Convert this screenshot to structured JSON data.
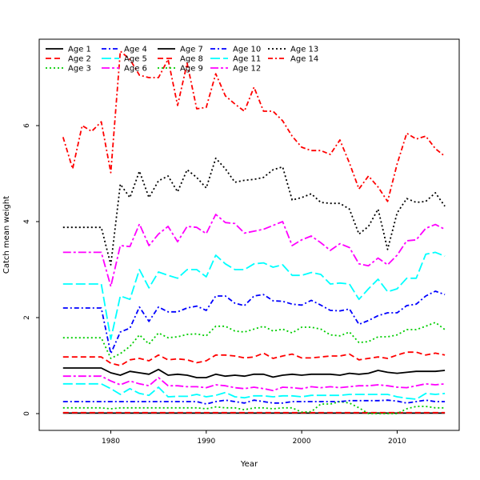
{
  "chart_data": {
    "type": "line",
    "title": "",
    "xlabel": "Year",
    "ylabel": "Catch mean weight",
    "xlim": [
      1972.5,
      2016.5
    ],
    "ylim": [
      -0.35,
      7.8
    ],
    "xticks": [
      1980,
      1990,
      2000,
      2010
    ],
    "yticks": [
      0,
      2,
      4,
      6
    ],
    "grid": false,
    "legend_position": "top-left",
    "x": [
      1975,
      1976,
      1977,
      1978,
      1979,
      1980,
      1981,
      1982,
      1983,
      1984,
      1985,
      1986,
      1987,
      1988,
      1989,
      1990,
      1991,
      1992,
      1993,
      1994,
      1995,
      1996,
      1997,
      1998,
      1999,
      2000,
      2001,
      2002,
      2003,
      2004,
      2005,
      2006,
      2007,
      2008,
      2009,
      2010,
      2011,
      2012,
      2013,
      2014,
      2015
    ],
    "series": [
      {
        "name": "Age 1",
        "color": "#000000",
        "dash": "solid",
        "values": [
          0.01,
          0.01,
          0.01,
          0.01,
          0.01,
          0.01,
          0.01,
          0.01,
          0.01,
          0.01,
          0.01,
          0.01,
          0.01,
          0.01,
          0.01,
          0.01,
          0.01,
          0.01,
          0.01,
          0.01,
          0.01,
          0.01,
          0.01,
          0.01,
          0.01,
          0.01,
          0.01,
          0.01,
          0.01,
          0.01,
          0.01,
          0.01,
          0.01,
          0.01,
          0.01,
          0.01,
          0.01,
          0.01,
          0.01,
          0.01,
          0.01
        ]
      },
      {
        "name": "Age 2",
        "color": "#ff0000",
        "dash": "dashed",
        "values": [
          0.02,
          0.02,
          0.02,
          0.02,
          0.02,
          0.02,
          0.02,
          0.02,
          0.02,
          0.02,
          0.02,
          0.02,
          0.02,
          0.02,
          0.02,
          0.02,
          0.02,
          0.02,
          0.02,
          0.02,
          0.02,
          0.02,
          0.02,
          0.02,
          0.02,
          0.02,
          0.02,
          0.02,
          0.02,
          0.02,
          0.02,
          0.02,
          0.02,
          0.02,
          0.02,
          0.02,
          0.02,
          0.02,
          0.02,
          0.02,
          0.02
        ]
      },
      {
        "name": "Age 3",
        "color": "#00cd00",
        "dash": "dotted",
        "values": [
          0.12,
          0.12,
          0.12,
          0.12,
          0.12,
          0.1,
          0.12,
          0.12,
          0.12,
          0.12,
          0.12,
          0.12,
          0.12,
          0.12,
          0.12,
          0.1,
          0.14,
          0.12,
          0.12,
          0.08,
          0.12,
          0.12,
          0.1,
          0.12,
          0.12,
          0.03,
          0.04,
          0.2,
          0.2,
          0.25,
          0.22,
          0.12,
          0.0,
          0.0,
          0.0,
          0.0,
          0.1,
          0.15,
          0.15,
          0.12,
          0.12
        ]
      },
      {
        "name": "Age 4",
        "color": "#0000ff",
        "dash": "dashdot",
        "values": [
          0.25,
          0.25,
          0.25,
          0.25,
          0.25,
          0.25,
          0.25,
          0.25,
          0.25,
          0.25,
          0.25,
          0.25,
          0.25,
          0.25,
          0.25,
          0.2,
          0.25,
          0.28,
          0.25,
          0.22,
          0.28,
          0.25,
          0.22,
          0.22,
          0.25,
          0.25,
          0.25,
          0.25,
          0.25,
          0.25,
          0.27,
          0.27,
          0.27,
          0.27,
          0.28,
          0.26,
          0.22,
          0.25,
          0.28,
          0.25,
          0.25
        ]
      },
      {
        "name": "Age 5",
        "color": "#00ffff",
        "dash": "longdash",
        "values": [
          0.62,
          0.62,
          0.62,
          0.62,
          0.62,
          0.52,
          0.4,
          0.52,
          0.42,
          0.38,
          0.55,
          0.35,
          0.36,
          0.36,
          0.4,
          0.35,
          0.38,
          0.44,
          0.35,
          0.33,
          0.37,
          0.37,
          0.35,
          0.37,
          0.37,
          0.35,
          0.38,
          0.38,
          0.38,
          0.38,
          0.4,
          0.4,
          0.4,
          0.4,
          0.4,
          0.35,
          0.32,
          0.3,
          0.42,
          0.4,
          0.42
        ]
      },
      {
        "name": "Age 6",
        "color": "#ff00ff",
        "dash": "twodash",
        "values": [
          0.78,
          0.78,
          0.78,
          0.78,
          0.78,
          0.68,
          0.6,
          0.68,
          0.62,
          0.58,
          0.75,
          0.58,
          0.58,
          0.56,
          0.56,
          0.54,
          0.6,
          0.58,
          0.54,
          0.52,
          0.55,
          0.52,
          0.48,
          0.55,
          0.54,
          0.52,
          0.56,
          0.54,
          0.56,
          0.54,
          0.56,
          0.58,
          0.58,
          0.6,
          0.58,
          0.55,
          0.54,
          0.58,
          0.62,
          0.6,
          0.62
        ]
      },
      {
        "name": "Age 7",
        "color": "#000000",
        "dash": "solid",
        "values": [
          0.95,
          0.95,
          0.95,
          0.95,
          0.95,
          0.85,
          0.8,
          0.88,
          0.85,
          0.82,
          0.92,
          0.8,
          0.82,
          0.8,
          0.75,
          0.75,
          0.82,
          0.78,
          0.8,
          0.78,
          0.82,
          0.82,
          0.76,
          0.8,
          0.82,
          0.8,
          0.82,
          0.82,
          0.82,
          0.8,
          0.84,
          0.82,
          0.84,
          0.9,
          0.86,
          0.84,
          0.86,
          0.88,
          0.88,
          0.88,
          0.9
        ]
      },
      {
        "name": "Age 8",
        "color": "#ff0000",
        "dash": "dashed",
        "values": [
          1.18,
          1.18,
          1.18,
          1.18,
          1.18,
          1.05,
          1.0,
          1.12,
          1.15,
          1.1,
          1.22,
          1.12,
          1.14,
          1.12,
          1.06,
          1.1,
          1.22,
          1.22,
          1.2,
          1.16,
          1.18,
          1.26,
          1.15,
          1.2,
          1.24,
          1.16,
          1.16,
          1.18,
          1.2,
          1.2,
          1.24,
          1.12,
          1.15,
          1.18,
          1.15,
          1.22,
          1.28,
          1.28,
          1.22,
          1.26,
          1.22
        ]
      },
      {
        "name": "Age 9",
        "color": "#00cd00",
        "dash": "dotted",
        "values": [
          1.58,
          1.58,
          1.58,
          1.58,
          1.58,
          1.15,
          1.25,
          1.4,
          1.64,
          1.45,
          1.68,
          1.58,
          1.6,
          1.65,
          1.66,
          1.62,
          1.82,
          1.82,
          1.72,
          1.7,
          1.76,
          1.82,
          1.72,
          1.76,
          1.68,
          1.8,
          1.8,
          1.76,
          1.64,
          1.62,
          1.7,
          1.48,
          1.5,
          1.6,
          1.6,
          1.64,
          1.75,
          1.75,
          1.82,
          1.9,
          1.75
        ]
      },
      {
        "name": "Age 10",
        "color": "#0000ff",
        "dash": "dashdot",
        "values": [
          2.2,
          2.2,
          2.2,
          2.2,
          2.2,
          1.25,
          1.7,
          1.78,
          2.22,
          1.92,
          2.22,
          2.12,
          2.12,
          2.2,
          2.24,
          2.15,
          2.45,
          2.45,
          2.3,
          2.25,
          2.45,
          2.48,
          2.35,
          2.34,
          2.28,
          2.26,
          2.36,
          2.26,
          2.15,
          2.14,
          2.18,
          1.86,
          1.94,
          2.04,
          2.1,
          2.1,
          2.25,
          2.28,
          2.45,
          2.55,
          2.48
        ]
      },
      {
        "name": "Age 11",
        "color": "#00ffff",
        "dash": "longdash",
        "values": [
          2.7,
          2.7,
          2.7,
          2.7,
          2.7,
          1.55,
          2.45,
          2.38,
          3.0,
          2.62,
          2.95,
          2.88,
          2.82,
          3.0,
          3.0,
          2.85,
          3.3,
          3.12,
          3.0,
          3.0,
          3.12,
          3.14,
          3.05,
          3.1,
          2.88,
          2.88,
          2.94,
          2.9,
          2.7,
          2.72,
          2.7,
          2.38,
          2.6,
          2.8,
          2.54,
          2.6,
          2.82,
          2.82,
          3.32,
          3.36,
          3.28
        ]
      },
      {
        "name": "Age 12",
        "color": "#ff00ff",
        "dash": "twodash",
        "values": [
          3.36,
          3.36,
          3.36,
          3.36,
          3.36,
          2.65,
          3.5,
          3.48,
          3.95,
          3.5,
          3.74,
          3.9,
          3.58,
          3.9,
          3.88,
          3.75,
          4.15,
          3.98,
          3.96,
          3.76,
          3.8,
          3.84,
          3.92,
          4.0,
          3.5,
          3.62,
          3.7,
          3.56,
          3.4,
          3.54,
          3.46,
          3.12,
          3.08,
          3.24,
          3.1,
          3.3,
          3.6,
          3.62,
          3.86,
          3.94,
          3.84
        ]
      },
      {
        "name": "Age 13",
        "color": "#000000",
        "dash": "dotted",
        "values": [
          3.88,
          3.88,
          3.88,
          3.88,
          3.88,
          3.1,
          4.78,
          4.5,
          5.05,
          4.5,
          4.85,
          4.95,
          4.62,
          5.08,
          4.92,
          4.7,
          5.32,
          5.1,
          4.82,
          4.86,
          4.88,
          4.92,
          5.08,
          5.14,
          4.45,
          4.5,
          4.58,
          4.4,
          4.38,
          4.38,
          4.26,
          3.74,
          3.9,
          4.26,
          3.42,
          4.18,
          4.48,
          4.4,
          4.42,
          4.6,
          4.32
        ]
      },
      {
        "name": "Age 14",
        "color": "#ff0000",
        "dash": "dashdot",
        "values": [
          5.76,
          5.1,
          6.0,
          5.88,
          6.08,
          5.02,
          7.55,
          7.38,
          7.05,
          7.0,
          7.0,
          7.38,
          6.42,
          7.3,
          6.35,
          6.38,
          7.08,
          6.62,
          6.45,
          6.3,
          6.8,
          6.3,
          6.3,
          6.1,
          5.78,
          5.55,
          5.48,
          5.48,
          5.4,
          5.7,
          5.22,
          4.68,
          4.95,
          4.72,
          4.42,
          5.2,
          5.84,
          5.72,
          5.78,
          5.52,
          5.36
        ]
      }
    ]
  }
}
